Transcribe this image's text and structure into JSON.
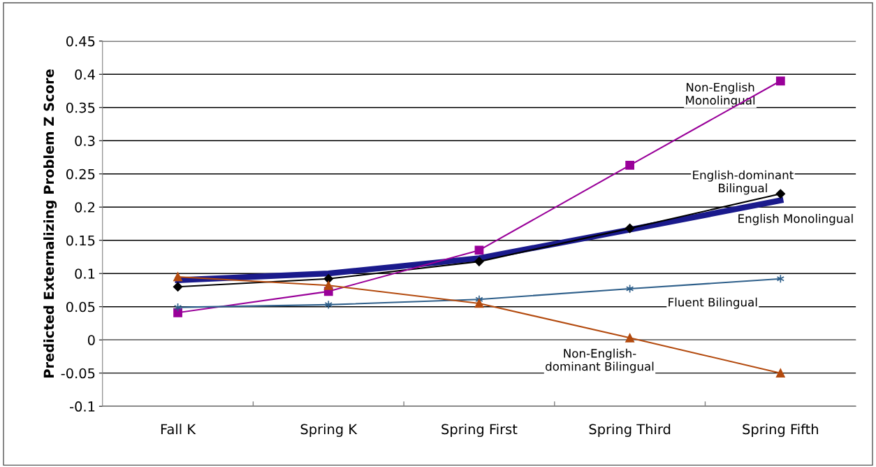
{
  "chart_data": {
    "type": "line",
    "ylabel": "Predicted Externalizing Problem Z Score",
    "categories": [
      "Fall K",
      "Spring K",
      "Spring First",
      "Spring Third",
      "Spring Fifth"
    ],
    "ylim": [
      -0.1,
      0.45
    ],
    "yticks": [
      -0.1,
      -0.05,
      0,
      0.05,
      0.1,
      0.15,
      0.2,
      0.25,
      0.3,
      0.35,
      0.4,
      0.45
    ],
    "grid": "y",
    "legend": false,
    "series": [
      {
        "name": "English Monolingual",
        "color": "#1a1a8c",
        "marker": "none",
        "values": [
          0.09,
          0.1,
          0.123,
          0.166,
          0.21
        ]
      },
      {
        "name": "English-dominant\nBilingual",
        "color": "#000000",
        "marker": "diamond",
        "values": [
          0.08,
          0.092,
          0.118,
          0.168,
          0.22
        ]
      },
      {
        "name": "Non-English\nMonolingual",
        "color": "#990099",
        "marker": "square",
        "values": [
          0.041,
          0.073,
          0.135,
          0.263,
          0.39
        ]
      },
      {
        "name": "Fluent Bilingual",
        "color": "#2e5f8a",
        "marker": "cross",
        "values": [
          0.049,
          0.053,
          0.061,
          0.077,
          0.092
        ]
      },
      {
        "name": "Non-English-\ndominant Bilingual",
        "color": "#b34a0e",
        "marker": "triangle",
        "values": [
          0.095,
          0.082,
          0.055,
          0.003,
          -0.05
        ]
      }
    ]
  }
}
